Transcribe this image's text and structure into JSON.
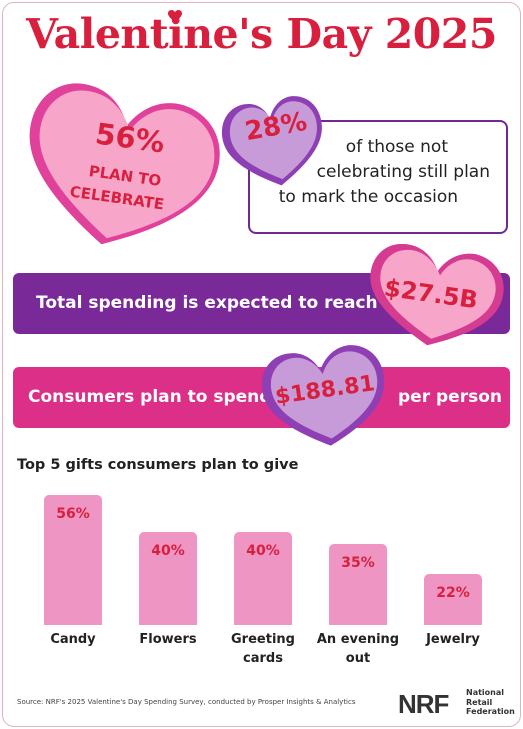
{
  "title": "Valentine's Day 2025",
  "hero": {
    "percent": "56%",
    "line1": "PLAN TO",
    "line2": "CELEBRATE"
  },
  "not_celebrating": {
    "percent": "28%",
    "line1": "of those not",
    "line2": "celebrating still plan",
    "line3": "to mark the occasion"
  },
  "total_spending": {
    "text": "Total spending is expected to reach",
    "value": "$27.5B"
  },
  "per_person": {
    "text_before": "Consumers plan to spend",
    "value": "$188.81",
    "text_after": "per person"
  },
  "chart_data": {
    "type": "bar",
    "title": "Top 5 gifts consumers plan to give",
    "categories": [
      "Candy",
      "Flowers",
      "Greeting cards",
      "An evening out",
      "Jewelry"
    ],
    "category_lines": [
      [
        "Candy"
      ],
      [
        "Flowers"
      ],
      [
        "Greeting",
        "cards"
      ],
      [
        "An evening",
        "out"
      ],
      [
        "Jewelry"
      ]
    ],
    "values": [
      56,
      40,
      40,
      35,
      22
    ],
    "value_labels": [
      "56%",
      "40%",
      "40%",
      "35%",
      "22%"
    ],
    "unit": "%",
    "ylim": [
      0,
      56
    ],
    "grid": false,
    "bar_color": "#ef95c3",
    "label_color": "#d81f3d"
  },
  "source": "Source: NRF's 2025 Valentine's Day Spending Survey, conducted by Prosper Insights & Analytics",
  "logo": {
    "mark": "NRF",
    "line1": "National",
    "line2": "Retail",
    "line3": "Federation"
  },
  "colors": {
    "title_red": "#d81f3d",
    "purple": "#7a2a98",
    "pink": "#db2f88",
    "light_pink": "#f7a6ca",
    "lavender": "#c79bd8"
  }
}
